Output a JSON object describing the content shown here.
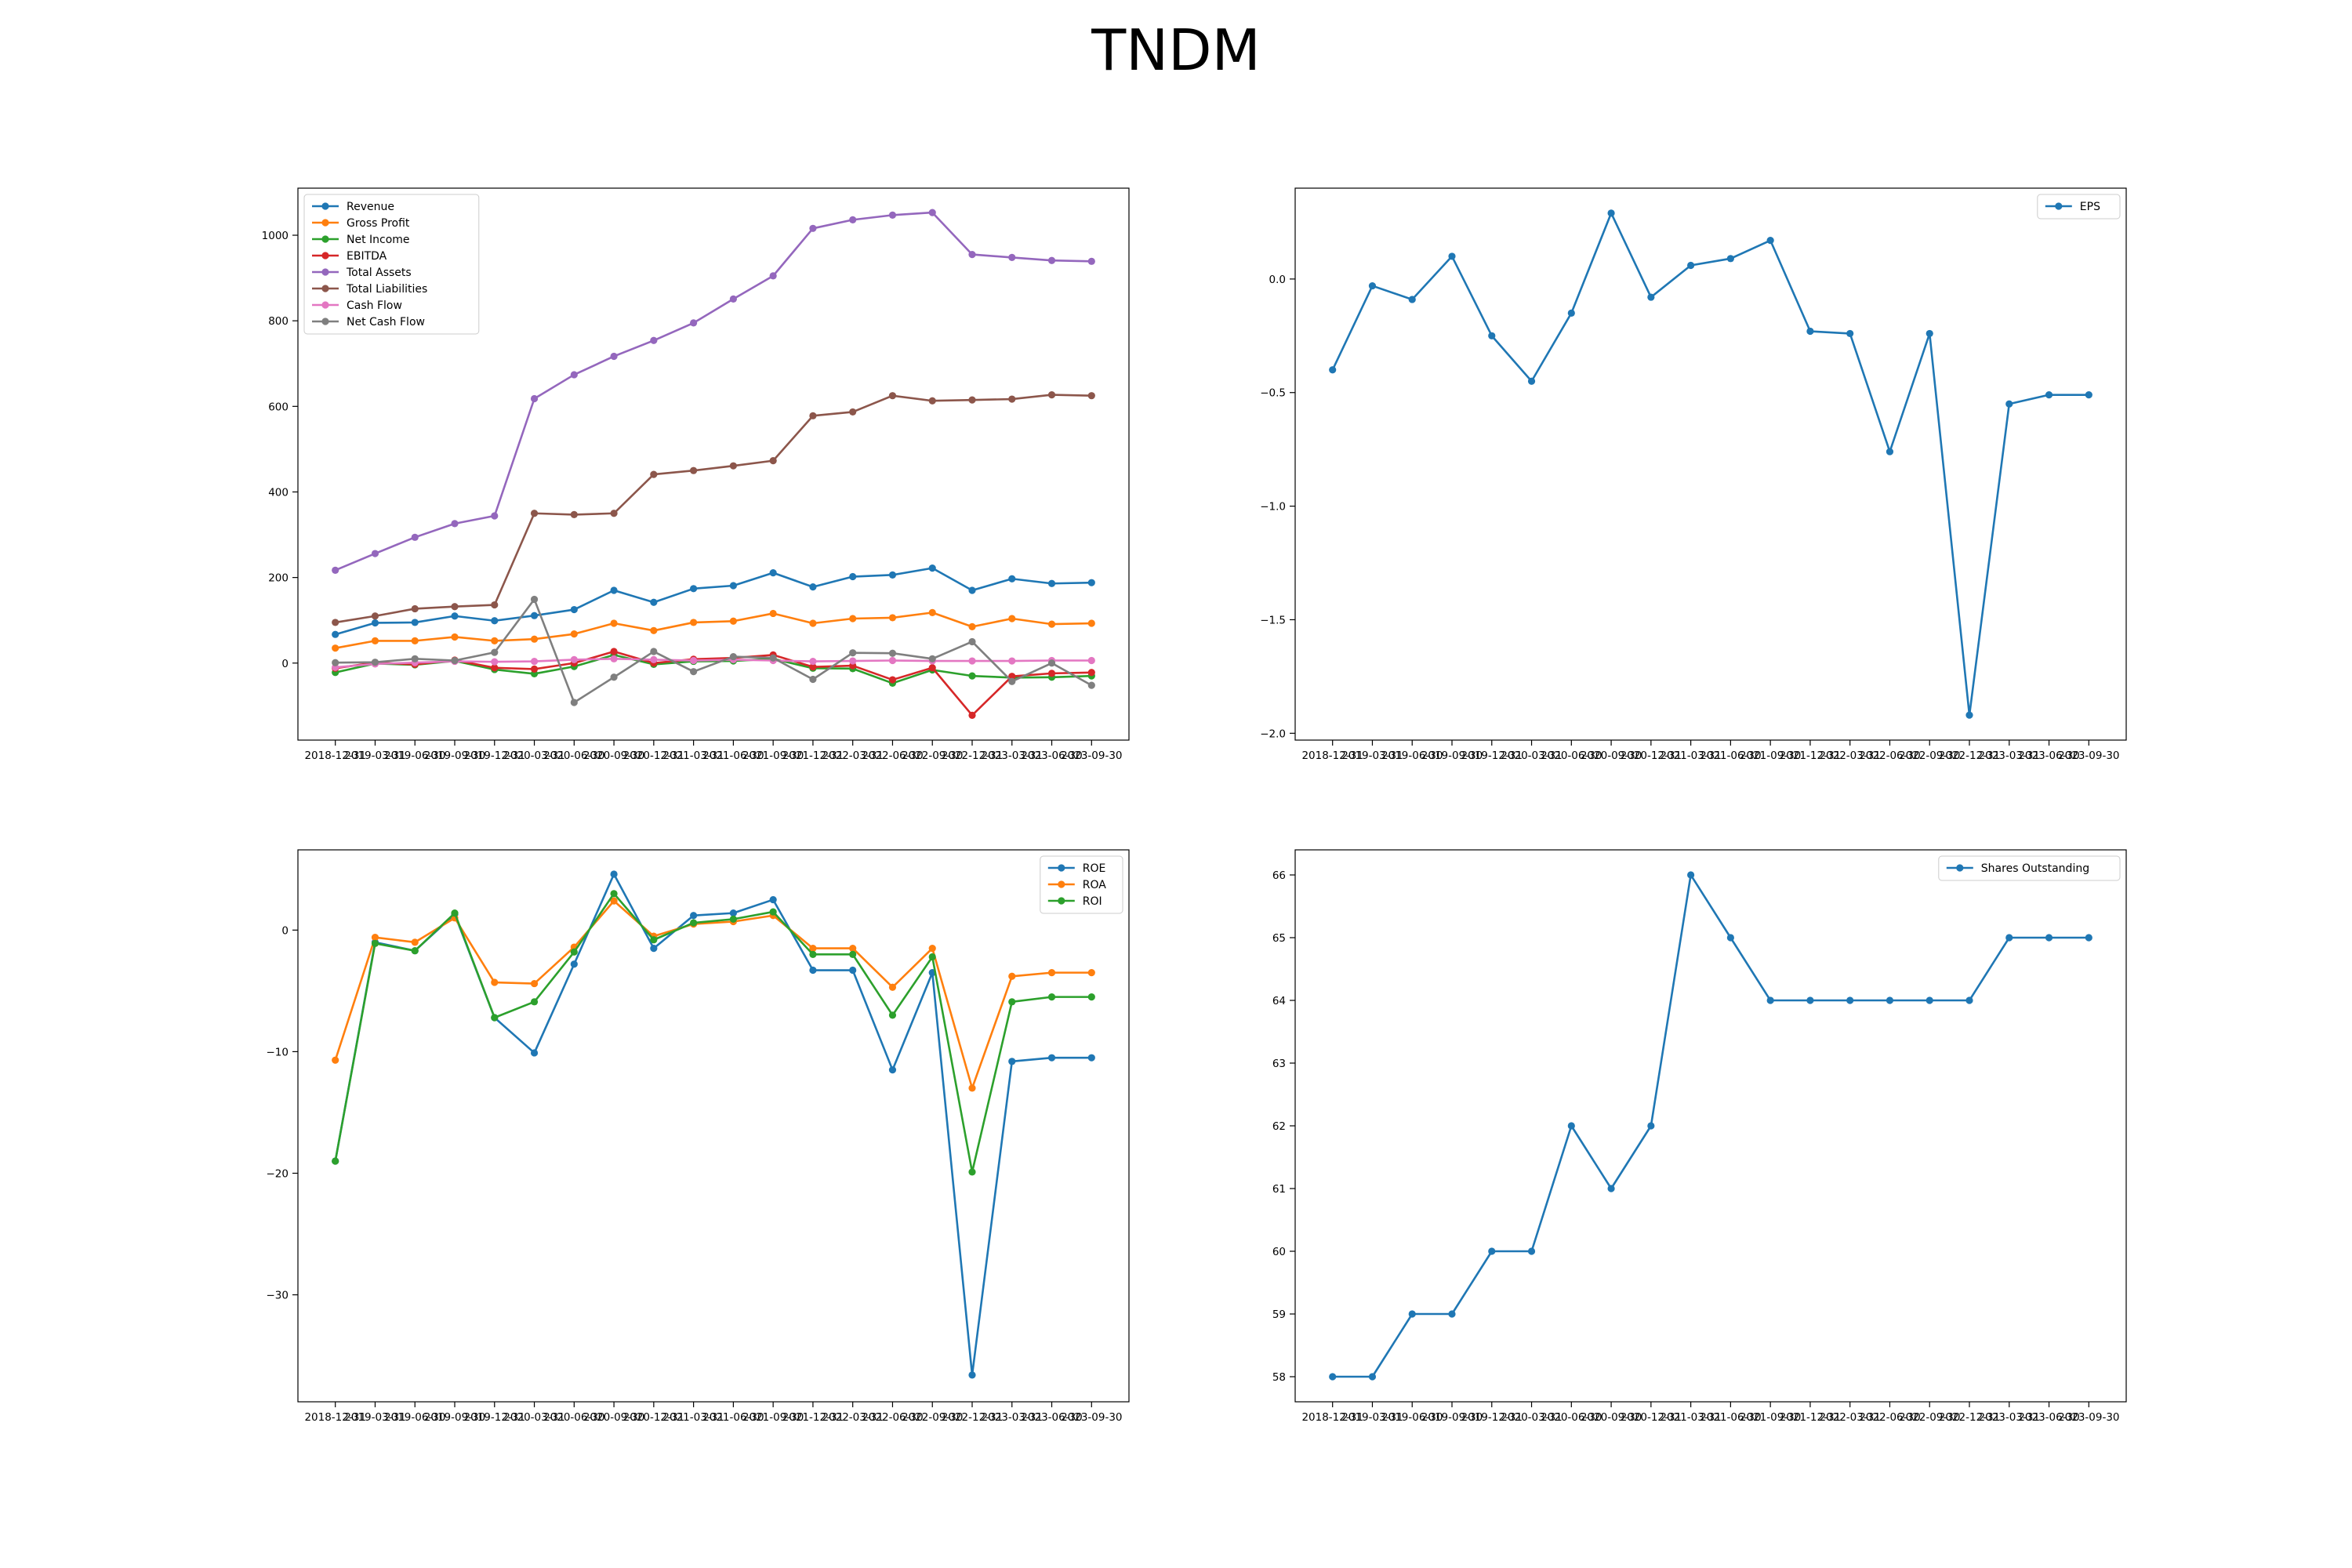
{
  "figure": {
    "title": "TNDM"
  },
  "colors": {
    "blue": "#1f77b4",
    "orange": "#ff7f0e",
    "green": "#2ca02c",
    "red": "#d62728",
    "purple": "#9467bd",
    "brown": "#8c564b",
    "pink": "#e377c2",
    "gray": "#7f7f7f"
  },
  "chart_data": [
    {
      "type": "line",
      "title": "",
      "xlabel": "",
      "ylabel": "",
      "x": [
        "2018-12-31",
        "2019-03-31",
        "2019-06-30",
        "2019-09-30",
        "2019-12-31",
        "2020-03-31",
        "2020-06-30",
        "2020-09-30",
        "2020-12-31",
        "2021-03-31",
        "2021-06-30",
        "2021-09-30",
        "2021-12-31",
        "2022-03-31",
        "2022-06-30",
        "2022-09-30",
        "2022-12-31",
        "2023-03-31",
        "2023-06-30",
        "2023-09-30"
      ],
      "ylim": [
        -180,
        1110
      ],
      "yticks": [
        0,
        200,
        400,
        600,
        800,
        1000
      ],
      "grid": false,
      "legend": "top-left",
      "series": [
        {
          "name": "Revenue",
          "color": "#1f77b4",
          "values": [
            67,
            94,
            95,
            110,
            99,
            111,
            125,
            170,
            142,
            174,
            181,
            211,
            178,
            202,
            206,
            222,
            170,
            197,
            186,
            188
          ]
        },
        {
          "name": "Gross Profit",
          "color": "#ff7f0e",
          "values": [
            35,
            52,
            52,
            61,
            52,
            56,
            68,
            93,
            76,
            95,
            98,
            116,
            93,
            104,
            106,
            118,
            85,
            104,
            91,
            93
          ]
        },
        {
          "name": "Net Income",
          "color": "#2ca02c",
          "values": [
            -22,
            -1,
            -4,
            5,
            -15,
            -25,
            -8,
            19,
            -3,
            4,
            5,
            10,
            -12,
            -13,
            -47,
            -16,
            -30,
            -34,
            -33,
            -30
          ]
        },
        {
          "name": "EBITDA",
          "color": "#d62728",
          "values": [
            -12,
            1,
            -3,
            7,
            -11,
            -14,
            0,
            27,
            0,
            9,
            12,
            19,
            -9,
            -6,
            -39,
            -11,
            -122,
            -31,
            -24,
            -22
          ]
        },
        {
          "name": "Total Assets",
          "color": "#9467bd",
          "values": [
            217,
            256,
            294,
            326,
            344,
            618,
            674,
            717,
            754,
            795,
            851,
            905,
            1016,
            1036,
            1047,
            1053,
            955,
            948,
            941,
            939
          ]
        },
        {
          "name": "Total Liabilities",
          "color": "#8c564b",
          "values": [
            95,
            110,
            127,
            132,
            136,
            350,
            347,
            350,
            441,
            450,
            461,
            473,
            578,
            587,
            625,
            613,
            615,
            617,
            627,
            625
          ]
        },
        {
          "name": "Cash Flow",
          "color": "#e377c2",
          "values": [
            -10,
            -2,
            1,
            4,
            3,
            4,
            8,
            10,
            8,
            6,
            8,
            6,
            4,
            5,
            6,
            5,
            5,
            5,
            6,
            6
          ]
        },
        {
          "name": "Net Cash Flow",
          "color": "#7f7f7f",
          "values": [
            1,
            2,
            10,
            6,
            25,
            149,
            -92,
            -33,
            27,
            -20,
            15,
            12,
            -38,
            24,
            23,
            10,
            50,
            -43,
            0,
            -52
          ]
        }
      ]
    },
    {
      "type": "line",
      "title": "",
      "xlabel": "",
      "ylabel": "",
      "x": [
        "2018-12-31",
        "2019-03-31",
        "2019-06-30",
        "2019-09-30",
        "2019-12-31",
        "2020-03-31",
        "2020-06-30",
        "2020-09-30",
        "2020-12-31",
        "2021-03-31",
        "2021-06-30",
        "2021-09-30",
        "2021-12-31",
        "2022-03-31",
        "2022-06-30",
        "2022-09-30",
        "2022-12-31",
        "2023-03-31",
        "2023-06-30",
        "2023-09-30"
      ],
      "ylim": [
        -2.03,
        0.4
      ],
      "yticks": [
        -2.0,
        -1.5,
        -1.0,
        -0.5,
        0.0
      ],
      "grid": false,
      "legend": "top-right",
      "series": [
        {
          "name": "EPS",
          "color": "#1f77b4",
          "values": [
            -0.4,
            -0.03,
            -0.09,
            0.1,
            -0.25,
            -0.45,
            -0.15,
            0.29,
            -0.08,
            0.06,
            0.09,
            0.17,
            -0.23,
            -0.24,
            -0.76,
            -0.24,
            -1.92,
            -0.55,
            -0.51,
            -0.51
          ]
        }
      ]
    },
    {
      "type": "line",
      "title": "",
      "xlabel": "",
      "ylabel": "",
      "x": [
        "2018-12-31",
        "2019-03-31",
        "2019-06-30",
        "2019-09-30",
        "2019-12-31",
        "2020-03-31",
        "2020-06-30",
        "2020-09-30",
        "2020-12-31",
        "2021-03-31",
        "2021-06-30",
        "2021-09-30",
        "2021-12-31",
        "2022-03-31",
        "2022-06-30",
        "2022-09-30",
        "2022-12-31",
        "2023-03-31",
        "2023-06-30",
        "2023-09-30"
      ],
      "ylim": [
        -38.8,
        6.6
      ],
      "yticks": [
        -30,
        -20,
        -10,
        0
      ],
      "grid": false,
      "legend": "top-right",
      "series": [
        {
          "name": "ROE",
          "color": "#1f77b4",
          "values": [
            -19.0,
            -1.0,
            -1.7,
            1.3,
            -7.2,
            -10.1,
            -2.8,
            4.6,
            -1.5,
            1.2,
            1.4,
            2.5,
            -3.3,
            -3.3,
            -11.5,
            -3.5,
            -36.6,
            -10.8,
            -10.5,
            -10.5
          ]
        },
        {
          "name": "ROA",
          "color": "#ff7f0e",
          "values": [
            -10.7,
            -0.6,
            -1.0,
            1.0,
            -4.3,
            -4.4,
            -1.4,
            2.4,
            -0.5,
            0.5,
            0.7,
            1.2,
            -1.5,
            -1.5,
            -4.7,
            -1.5,
            -13.0,
            -3.8,
            -3.5,
            -3.5
          ]
        },
        {
          "name": "ROI",
          "color": "#2ca02c",
          "values": [
            -19.0,
            -1.1,
            -1.7,
            1.4,
            -7.2,
            -5.9,
            -1.8,
            3.0,
            -0.8,
            0.6,
            0.9,
            1.5,
            -2.0,
            -2.0,
            -7.0,
            -2.2,
            -19.9,
            -5.9,
            -5.5,
            -5.5
          ]
        }
      ]
    },
    {
      "type": "line",
      "title": "",
      "xlabel": "",
      "ylabel": "",
      "x": [
        "2018-12-31",
        "2019-03-31",
        "2019-06-30",
        "2019-09-30",
        "2019-12-31",
        "2020-03-31",
        "2020-06-30",
        "2020-09-30",
        "2020-12-31",
        "2021-03-31",
        "2021-06-30",
        "2021-09-30",
        "2021-12-31",
        "2022-03-31",
        "2022-06-30",
        "2022-09-30",
        "2022-12-31",
        "2023-03-31",
        "2023-06-30",
        "2023-09-30"
      ],
      "ylim": [
        57.6,
        66.4
      ],
      "yticks": [
        58,
        59,
        60,
        61,
        62,
        63,
        64,
        65,
        66
      ],
      "grid": false,
      "legend": "top-right",
      "series": [
        {
          "name": "Shares Outstanding",
          "color": "#1f77b4",
          "values": [
            58,
            58,
            59,
            59,
            60,
            60,
            62,
            61,
            62,
            66,
            65,
            64,
            64,
            64,
            64,
            64,
            64,
            65,
            65,
            65
          ]
        }
      ]
    }
  ]
}
